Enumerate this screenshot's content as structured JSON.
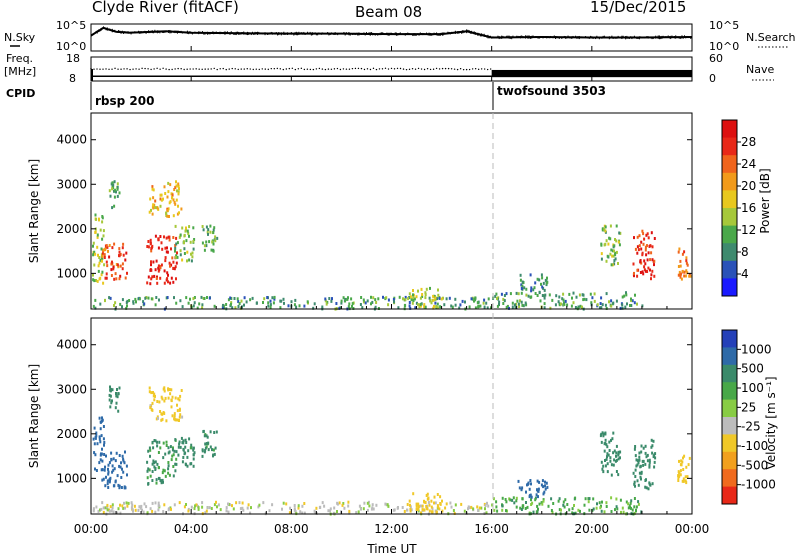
{
  "header": {
    "station": "Clyde River (fitACF)",
    "beam": "Beam 08",
    "date": "15/Dec/2015"
  },
  "top_panels": {
    "nsky_label": "N.Sky",
    "nsearch_label": "N.Search",
    "nsky_ticks": [
      "10^5",
      "10^0"
    ],
    "nsearch_ticks": [
      "10^5",
      "10^0"
    ],
    "freq_label": "Freq.",
    "freq_unit": "[MHz]",
    "freq_ticks": [
      "18",
      "8"
    ],
    "nave_label": "Nave",
    "nave_ticks": [
      "60",
      "0"
    ],
    "cpid_label": "CPID",
    "programs": [
      {
        "name": "rbsp 200",
        "start_hour": 0
      },
      {
        "name": "twofsound 3503",
        "start_hour": 16
      }
    ]
  },
  "axes": {
    "xlabel": "Time UT",
    "x_ticks": [
      "00:00",
      "04:00",
      "08:00",
      "12:00",
      "16:00",
      "20:00",
      "00:00"
    ],
    "ylabel": "Slant Range [km]",
    "y_ticks": [
      "1000",
      "2000",
      "3000",
      "4000"
    ]
  },
  "colorbars": {
    "power": {
      "label": "Power [dB]",
      "ticks": [
        "4",
        "8",
        "12",
        "16",
        "20",
        "24",
        "28"
      ],
      "colors": [
        "#1a1aff",
        "#2a52b8",
        "#3e8a6e",
        "#4aa84a",
        "#a6c83a",
        "#e8c81e",
        "#f29a1a",
        "#f0641c",
        "#e82818",
        "#dd1010"
      ]
    },
    "velocity": {
      "label": "Velocity [m s⁻¹]",
      "ticks": [
        "1000",
        "500",
        "100",
        "25",
        "-25",
        "-100",
        "-500",
        "-1000"
      ],
      "colors": [
        "#2440b8",
        "#2e6aa8",
        "#3a8a6a",
        "#48a848",
        "#88cc44",
        "#bcbcbc",
        "#f0c828",
        "#f2a01e",
        "#f06a1e",
        "#e82818"
      ]
    }
  },
  "chart_data": [
    {
      "type": "line",
      "title": "N.Sky / N.Search",
      "x_unit": "hours UT",
      "series": [
        {
          "name": "N.Sky",
          "x": [
            0,
            0.3,
            0.5,
            1,
            1.5,
            2,
            3,
            4,
            6,
            8,
            10,
            12,
            14,
            15,
            16,
            18,
            20,
            22,
            24
          ],
          "y": [
            3,
            4,
            4.6,
            3.8,
            3.6,
            3.7,
            3.9,
            3.6,
            3.5,
            3.4,
            3.4,
            3.3,
            3.3,
            3.9,
            2.6,
            2.7,
            2.6,
            2.6,
            2.7
          ]
        }
      ],
      "ylim": [
        0,
        5
      ]
    },
    {
      "type": "line",
      "title": "Freq. / Nave",
      "x_unit": "hours UT",
      "series": [
        {
          "name": "Freq. [MHz]",
          "x": [
            0,
            16,
            16,
            24
          ],
          "y": [
            10,
            10,
            10,
            10
          ]
        },
        {
          "name": "Nave",
          "x": [
            0,
            16,
            16,
            24
          ],
          "y": [
            30,
            30,
            20,
            20
          ]
        }
      ],
      "ylim": [
        8,
        18
      ]
    },
    {
      "type": "heatmap",
      "title": "Power [dB]",
      "x_unit": "hours UT",
      "y_unit": "km",
      "xlim": [
        0,
        24
      ],
      "ylim": [
        200,
        4600
      ],
      "clim": [
        0,
        30
      ],
      "patches": [
        {
          "x0": 0.0,
          "x1": 0.5,
          "y0": 800,
          "y1": 2400,
          "v": 14
        },
        {
          "x0": 0.4,
          "x1": 1.4,
          "y0": 900,
          "y1": 1700,
          "v": 24
        },
        {
          "x0": 0.7,
          "x1": 1.1,
          "y0": 2500,
          "y1": 3100,
          "v": 10
        },
        {
          "x0": 2.2,
          "x1": 3.4,
          "y0": 800,
          "y1": 1900,
          "v": 27
        },
        {
          "x0": 3.3,
          "x1": 4.1,
          "y0": 1300,
          "y1": 2100,
          "v": 12
        },
        {
          "x0": 2.3,
          "x1": 3.6,
          "y0": 2300,
          "y1": 3100,
          "v": 18
        },
        {
          "x0": 4.4,
          "x1": 5.0,
          "y0": 1500,
          "y1": 2100,
          "v": 10
        },
        {
          "x0": 0.0,
          "x1": 16.0,
          "y0": 230,
          "y1": 500,
          "v": 9
        },
        {
          "x0": 12.6,
          "x1": 14.0,
          "y0": 250,
          "y1": 700,
          "v": 14
        },
        {
          "x0": 16.0,
          "x1": 22.0,
          "y0": 230,
          "y1": 600,
          "v": 9
        },
        {
          "x0": 17.0,
          "x1": 18.2,
          "y0": 600,
          "y1": 1000,
          "v": 8
        },
        {
          "x0": 20.3,
          "x1": 21.1,
          "y0": 1200,
          "y1": 2100,
          "v": 12
        },
        {
          "x0": 21.6,
          "x1": 22.5,
          "y0": 900,
          "y1": 2000,
          "v": 26
        },
        {
          "x0": 23.4,
          "x1": 23.9,
          "y0": 900,
          "y1": 1600,
          "v": 22
        }
      ]
    },
    {
      "type": "heatmap",
      "title": "Velocity [m s⁻¹]",
      "x_unit": "hours UT",
      "y_unit": "km",
      "xlim": [
        0,
        24
      ],
      "ylim": [
        200,
        4600
      ],
      "clim": [
        -1000,
        1000
      ],
      "patches": [
        {
          "x0": 0.0,
          "x1": 0.5,
          "y0": 1200,
          "y1": 2400,
          "v": 700
        },
        {
          "x0": 0.4,
          "x1": 1.4,
          "y0": 800,
          "y1": 1700,
          "v": 900
        },
        {
          "x0": 0.7,
          "x1": 1.1,
          "y0": 2500,
          "y1": 3100,
          "v": 200
        },
        {
          "x0": 2.2,
          "x1": 3.4,
          "y0": 900,
          "y1": 1900,
          "v": 120
        },
        {
          "x0": 3.3,
          "x1": 4.1,
          "y0": 1300,
          "y1": 2000,
          "v": 150
        },
        {
          "x0": 2.3,
          "x1": 3.6,
          "y0": 2300,
          "y1": 3100,
          "v": -150
        },
        {
          "x0": 4.4,
          "x1": 5.0,
          "y0": 1500,
          "y1": 2100,
          "v": 130
        },
        {
          "x0": 0.0,
          "x1": 16.0,
          "y0": 230,
          "y1": 500,
          "v": -60
        },
        {
          "x0": 12.6,
          "x1": 14.0,
          "y0": 250,
          "y1": 700,
          "v": -400
        },
        {
          "x0": 16.0,
          "x1": 22.0,
          "y0": 230,
          "y1": 600,
          "v": 60
        },
        {
          "x0": 17.0,
          "x1": 18.2,
          "y0": 600,
          "y1": 1000,
          "v": 600
        },
        {
          "x0": 20.3,
          "x1": 21.1,
          "y0": 1100,
          "y1": 2100,
          "v": 200
        },
        {
          "x0": 21.6,
          "x1": 22.5,
          "y0": 800,
          "y1": 1900,
          "v": 300
        },
        {
          "x0": 23.4,
          "x1": 23.9,
          "y0": 900,
          "y1": 1600,
          "v": -300
        }
      ]
    }
  ]
}
